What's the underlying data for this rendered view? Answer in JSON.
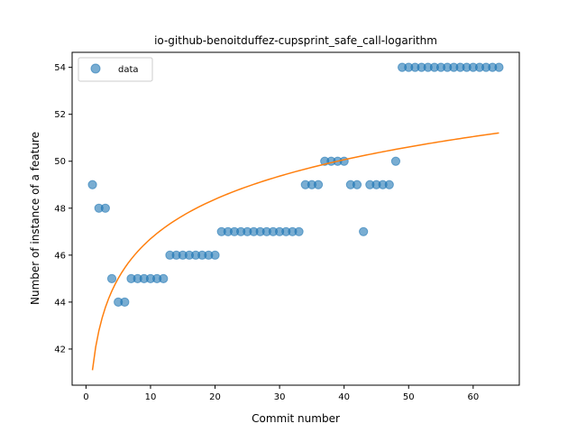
{
  "chart_data": {
    "type": "scatter",
    "title": "io-github-benoitduffez-cupsprint_safe_call-logarithm",
    "xlabel": "Commit number",
    "ylabel": "Number of instance of a feature",
    "xlim": [
      -2.15,
      67.15
    ],
    "ylim": [
      40.46,
      54.64
    ],
    "xticks": [
      0,
      10,
      20,
      30,
      40,
      50,
      60
    ],
    "yticks": [
      42,
      44,
      46,
      48,
      50,
      52,
      54
    ],
    "grid": false,
    "legend": {
      "position": "top-left",
      "entries": [
        "data"
      ]
    },
    "series": [
      {
        "name": "data",
        "kind": "scatter",
        "color": "#1f77b4",
        "x": [
          1,
          2,
          3,
          4,
          5,
          6,
          7,
          8,
          9,
          10,
          11,
          12,
          13,
          14,
          15,
          16,
          17,
          18,
          19,
          20,
          21,
          22,
          23,
          24,
          25,
          26,
          27,
          28,
          29,
          30,
          31,
          32,
          33,
          34,
          35,
          36,
          37,
          38,
          39,
          40,
          41,
          42,
          43,
          44,
          45,
          46,
          47,
          48,
          49,
          50,
          51,
          52,
          53,
          54,
          55,
          56,
          57,
          58,
          59,
          60,
          61,
          62,
          63,
          64
        ],
        "y": [
          49,
          48,
          48,
          45,
          44,
          44,
          45,
          45,
          45,
          45,
          45,
          45,
          46,
          46,
          46,
          46,
          46,
          46,
          46,
          46,
          47,
          47,
          47,
          47,
          47,
          47,
          47,
          47,
          47,
          47,
          47,
          47,
          47,
          49,
          49,
          49,
          50,
          50,
          50,
          50,
          49,
          49,
          47,
          49,
          49,
          49,
          49,
          50,
          54,
          54,
          54,
          54,
          54,
          54,
          54,
          54,
          54,
          54,
          54,
          54,
          54,
          54,
          54,
          54
        ]
      },
      {
        "kind": "line",
        "color": "#ff7f0e",
        "model": "logarithmic fit",
        "a": 41.1,
        "b": 2.43
      }
    ]
  }
}
